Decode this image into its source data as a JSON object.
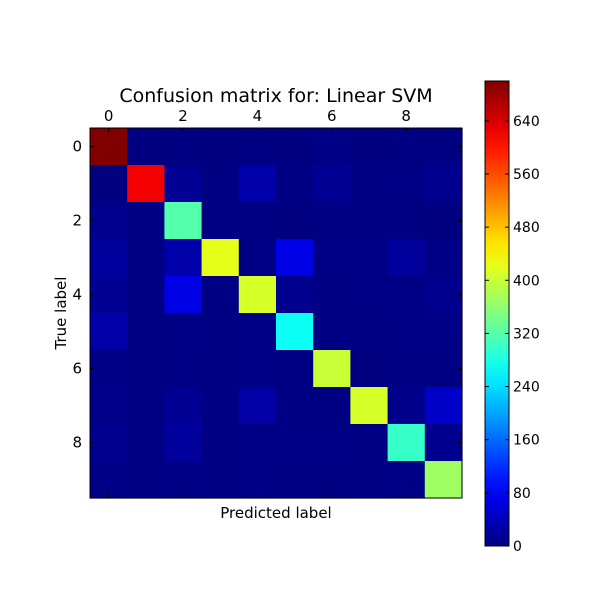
{
  "chart_data": {
    "type": "heatmap",
    "title": "Confusion matrix for: Linear SVM",
    "xlabel": "Predicted label",
    "ylabel": "True label",
    "x_tick_labels": [
      "0",
      "2",
      "4",
      "6",
      "8"
    ],
    "y_tick_labels": [
      "0",
      "2",
      "4",
      "6",
      "8"
    ],
    "x_ticks": [
      0,
      2,
      4,
      6,
      8
    ],
    "y_ticks": [
      0,
      2,
      4,
      6,
      8
    ],
    "x_axis_position": "top",
    "colormap": "jet",
    "vmin": 0,
    "vmax": 700,
    "colorbar_ticks": [
      0,
      80,
      160,
      240,
      320,
      400,
      480,
      560,
      640
    ],
    "colorbar_tick_labels": [
      "0",
      "80",
      "160",
      "240",
      "320",
      "400",
      "480",
      "560",
      "640"
    ],
    "matrix": [
      [
        700,
        0,
        2,
        0,
        2,
        1,
        5,
        1,
        2,
        2
      ],
      [
        0,
        620,
        15,
        2,
        30,
        3,
        15,
        3,
        5,
        10
      ],
      [
        10,
        2,
        320,
        2,
        3,
        1,
        3,
        2,
        2,
        1
      ],
      [
        20,
        3,
        30,
        420,
        5,
        70,
        5,
        5,
        20,
        5
      ],
      [
        15,
        3,
        70,
        3,
        410,
        10,
        3,
        5,
        5,
        10
      ],
      [
        30,
        2,
        5,
        3,
        5,
        270,
        3,
        2,
        5,
        5
      ],
      [
        5,
        2,
        5,
        2,
        5,
        3,
        400,
        1,
        3,
        2
      ],
      [
        8,
        3,
        15,
        3,
        25,
        3,
        2,
        410,
        8,
        50
      ],
      [
        10,
        3,
        20,
        3,
        5,
        5,
        5,
        2,
        300,
        10
      ],
      [
        5,
        3,
        5,
        3,
        5,
        3,
        2,
        3,
        5,
        370
      ]
    ]
  }
}
